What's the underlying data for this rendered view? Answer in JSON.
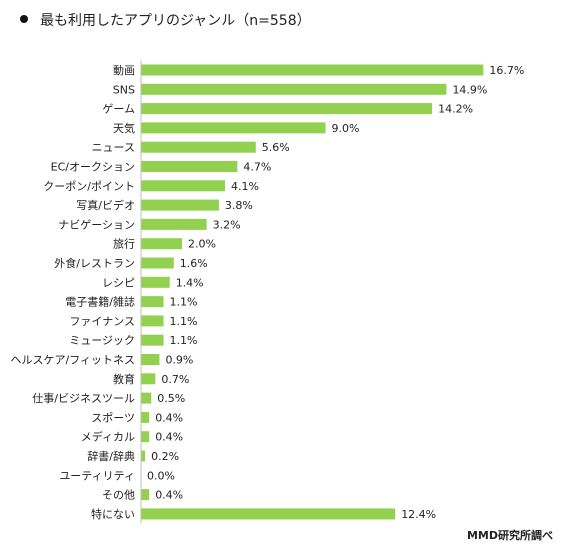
{
  "title": "最も利用したアプリのジャンル（n=558）",
  "source": "MMD研究所調べ",
  "colors": {
    "bar": "#92d050",
    "axis": "#bfbfbf"
  },
  "chart_data": {
    "type": "bar",
    "orientation": "horizontal",
    "title": "最も利用したアプリのジャンル（n=558）",
    "value_suffix": "%",
    "xlim": [
      0,
      20
    ],
    "grid": false,
    "legend": "none",
    "categories": [
      "動画",
      "SNS",
      "ゲーム",
      "天気",
      "ニュース",
      "EC/オークション",
      "クーポン/ポイント",
      "写真/ビデオ",
      "ナビゲーション",
      "旅行",
      "外食/レストラン",
      "レシピ",
      "電子書籍/雑誌",
      "ファイナンス",
      "ミュージック",
      "ヘルスケア/フィットネス",
      "教育",
      "仕事/ビジネスツール",
      "スポーツ",
      "メディカル",
      "辞書/辞典",
      "ユーティリティ",
      "その他",
      "特にない"
    ],
    "values": [
      16.7,
      14.9,
      14.2,
      9.0,
      5.6,
      4.7,
      4.1,
      3.8,
      3.2,
      2.0,
      1.6,
      1.4,
      1.1,
      1.1,
      1.1,
      0.9,
      0.7,
      0.5,
      0.4,
      0.4,
      0.2,
      0.0,
      0.4,
      12.4
    ],
    "labels": [
      "16.7%",
      "14.9%",
      "14.2%",
      "9.0%",
      "5.6%",
      "4.7%",
      "4.1%",
      "3.8%",
      "3.2%",
      "2.0%",
      "1.6%",
      "1.4%",
      "1.1%",
      "1.1%",
      "1.1%",
      "0.9%",
      "0.7%",
      "0.5%",
      "0.4%",
      "0.4%",
      "0.2%",
      "0.0%",
      "0.4%",
      "12.4%"
    ]
  }
}
